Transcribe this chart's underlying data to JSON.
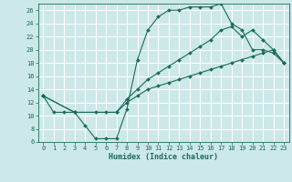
{
  "xlabel": "Humidex (Indice chaleur)",
  "ylabel": "",
  "bg_color": "#cce8e8",
  "grid_color": "#ffffff",
  "line_color": "#1a6b5a",
  "xlim": [
    -0.5,
    23.5
  ],
  "ylim": [
    6,
    27
  ],
  "xticks": [
    0,
    1,
    2,
    3,
    4,
    5,
    6,
    7,
    8,
    9,
    10,
    11,
    12,
    13,
    14,
    15,
    16,
    17,
    18,
    19,
    20,
    21,
    22,
    23
  ],
  "yticks": [
    6,
    8,
    10,
    12,
    14,
    16,
    18,
    20,
    22,
    24,
    26
  ],
  "line1_x": [
    0,
    1,
    2,
    3,
    4,
    5,
    6,
    7,
    8,
    9,
    10,
    11,
    12,
    13,
    14,
    15,
    16,
    17,
    18,
    19,
    20,
    21,
    22,
    23
  ],
  "line1_y": [
    13,
    10.5,
    10.5,
    10.5,
    8.5,
    6.5,
    6.5,
    6.5,
    11,
    18.5,
    23,
    25,
    26,
    26,
    26.5,
    26.5,
    26.5,
    27,
    24,
    23,
    20,
    20,
    19.5,
    18
  ],
  "line2_x": [
    0,
    3,
    7,
    8,
    9,
    10,
    11,
    12,
    13,
    14,
    15,
    16,
    17,
    18,
    19,
    20,
    21,
    22,
    23
  ],
  "line2_y": [
    13,
    10.5,
    10.5,
    12.5,
    14,
    15.5,
    16.5,
    17.5,
    18.5,
    19.5,
    20.5,
    21.5,
    23,
    23.5,
    22,
    23,
    21.5,
    20,
    18
  ],
  "line3_x": [
    0,
    3,
    5,
    6,
    7,
    8,
    9,
    10,
    11,
    12,
    13,
    14,
    15,
    16,
    17,
    18,
    19,
    20,
    21,
    22,
    23
  ],
  "line3_y": [
    13,
    10.5,
    10.5,
    10.5,
    10.5,
    12,
    13,
    14,
    14.5,
    15,
    15.5,
    16,
    16.5,
    17,
    17.5,
    18,
    18.5,
    19,
    19.5,
    20,
    18
  ]
}
